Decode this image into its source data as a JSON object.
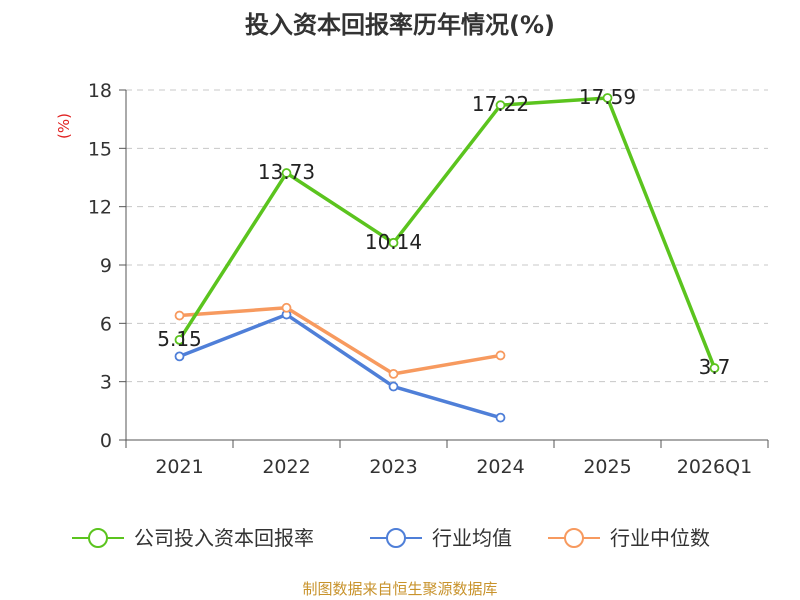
{
  "chart_data": {
    "type": "line",
    "title": "投入资本回报率历年情况(%)",
    "ylabel": "(%)",
    "xlabel": "",
    "ylim": [
      0,
      18
    ],
    "yticks": [
      0,
      3,
      6,
      9,
      12,
      15,
      18
    ],
    "categories": [
      "2021",
      "2022",
      "2023",
      "2024",
      "2025",
      "2026Q1"
    ],
    "grid": true,
    "legend_position": "bottom",
    "series": [
      {
        "name": "公司投入资本回报率",
        "color": "#5bc41e",
        "values": [
          5.15,
          13.73,
          10.14,
          17.22,
          17.59,
          3.7
        ],
        "labels": [
          "5.15",
          "13.73",
          "10.14",
          "17.22",
          "17.59",
          "3.7"
        ]
      },
      {
        "name": "行业均值",
        "color": "#4f7fd8",
        "values": [
          4.3,
          6.45,
          2.75,
          1.15,
          null,
          null
        ]
      },
      {
        "name": "行业中位数",
        "color": "#f79a5f",
        "values": [
          6.4,
          6.8,
          3.4,
          4.35,
          null,
          null
        ]
      }
    ]
  },
  "footer": {
    "source": "制图数据来自恒生聚源数据库"
  }
}
